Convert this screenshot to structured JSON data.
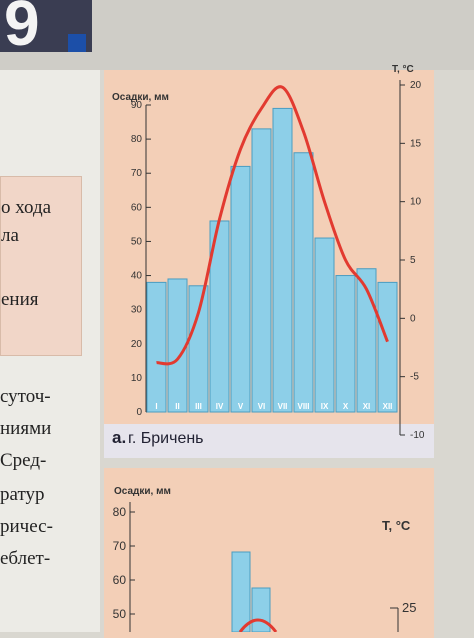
{
  "page": {
    "corner_number": "9",
    "left_text_lines": [
      "о хода",
      "ла",
      "ения"
    ],
    "side_text_lines": [
      "суточ-",
      "ниями",
      "Сред-",
      "ратур",
      "ричес-",
      "еблет-"
    ]
  },
  "caption": {
    "letter": "а.",
    "text": "г. Бричень"
  },
  "chart_data": [
    {
      "type": "bar",
      "categories": [
        "I",
        "II",
        "III",
        "IV",
        "V",
        "VI",
        "VII",
        "VIII",
        "IX",
        "X",
        "XI",
        "XII"
      ],
      "series": [
        {
          "values": [
            38,
            39,
            37,
            56,
            72,
            83,
            89,
            76,
            51,
            40,
            42,
            38
          ]
        },
        {
          "values": [
            -3.8,
            -3.5,
            0.5,
            8.5,
            14.5,
            18.0,
            19.8,
            16.0,
            10.0,
            5.0,
            2.5,
            -2.0
          ]
        }
      ],
      "ylabel": "Осадки, мм",
      "y2label": "T, °C",
      "ylim": [
        0,
        90
      ],
      "y2lim": [
        -10,
        20
      ],
      "yticks": [
        0,
        10,
        20,
        30,
        40,
        50,
        60,
        70,
        80,
        90
      ],
      "y2ticks": [
        -10,
        -5,
        0,
        5,
        10,
        15,
        20
      ],
      "colors": {
        "bars": "#8dcfe8",
        "bar_edge": "#4a9cc0",
        "line": "#e23a30",
        "background": "#f3cfb7"
      }
    },
    {
      "type": "bar",
      "categories": [],
      "values": [],
      "ylabel": "Осадки, мм",
      "y2label": "T, °C",
      "yticks": [
        50,
        60,
        70,
        80
      ],
      "y2ticks": [
        25
      ],
      "colors": {
        "bars": "#8dcfe8"
      }
    }
  ]
}
